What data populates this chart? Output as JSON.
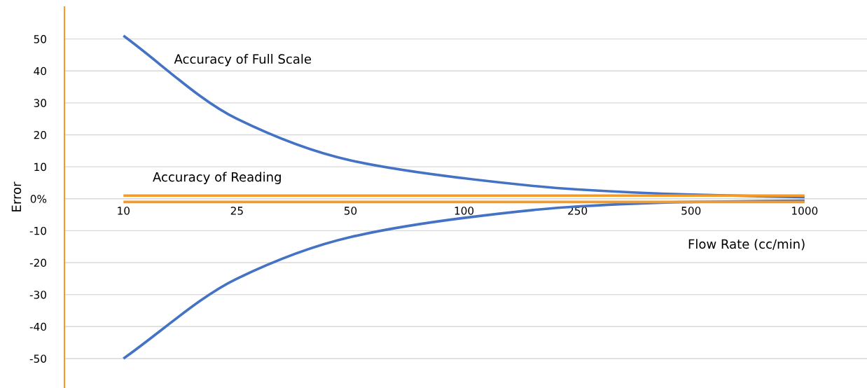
{
  "chart_data": {
    "type": "line",
    "xlabel": "Flow Rate (cc/min)",
    "ylabel": "Error",
    "categories": [
      "10",
      "25",
      "50",
      "100",
      "250",
      "500",
      "1000"
    ],
    "series": [
      {
        "name": "Accuracy of Full Scale",
        "color": "#4472c4",
        "values": [
          51,
          25,
          12,
          6.4,
          2.9,
          1.3,
          0.5
        ]
      },
      {
        "color": "#4472c4",
        "values": [
          -50,
          -25,
          -12,
          -6,
          -2.4,
          -1,
          -0.6
        ]
      },
      {
        "name": "Accuracy of Reading",
        "color": "#f39a2b",
        "values": [
          1,
          1,
          1,
          1,
          1,
          1,
          1
        ]
      },
      {
        "color": "#f39a2b",
        "values": [
          -1,
          -1,
          -1,
          -1,
          -1,
          -1,
          -1
        ]
      }
    ],
    "ylim": [
      -59,
      60
    ],
    "yticks": [
      -50,
      -40,
      -30,
      -20,
      -10,
      {
        "value": 0,
        "label": "0%"
      },
      10,
      20,
      30,
      40,
      50
    ],
    "grid": "y",
    "legend": false,
    "marker": "none",
    "line_style": "solid"
  }
}
